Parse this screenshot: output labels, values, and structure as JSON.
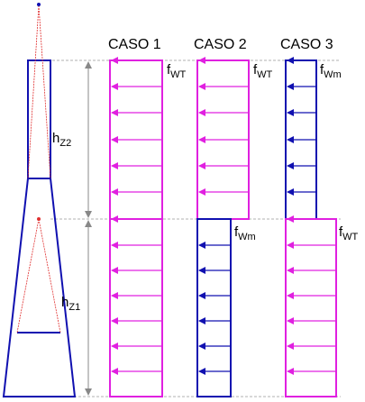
{
  "headers": {
    "case1": "CASO 1",
    "case2": "CASO 2",
    "case3": "CASO 3"
  },
  "tower_labels": {
    "h_upper": {
      "main": "h",
      "sub": "Z2"
    },
    "h_lower": {
      "main": "h",
      "sub": "Z1"
    }
  },
  "load_labels": {
    "case1_upper": {
      "main": "f",
      "sub": "WT"
    },
    "case2_upper": {
      "main": "f",
      "sub": "WT"
    },
    "case2_lower": {
      "main": "f",
      "sub": "Wm"
    },
    "case3_upper": {
      "main": "f",
      "sub": "Wm"
    },
    "case3_lower": {
      "main": "f",
      "sub": "WT"
    }
  },
  "colors": {
    "magenta": "#e020e0",
    "blue": "#1010b0",
    "gray": "#888888",
    "red": "#e03030",
    "black": "#000000"
  }
}
